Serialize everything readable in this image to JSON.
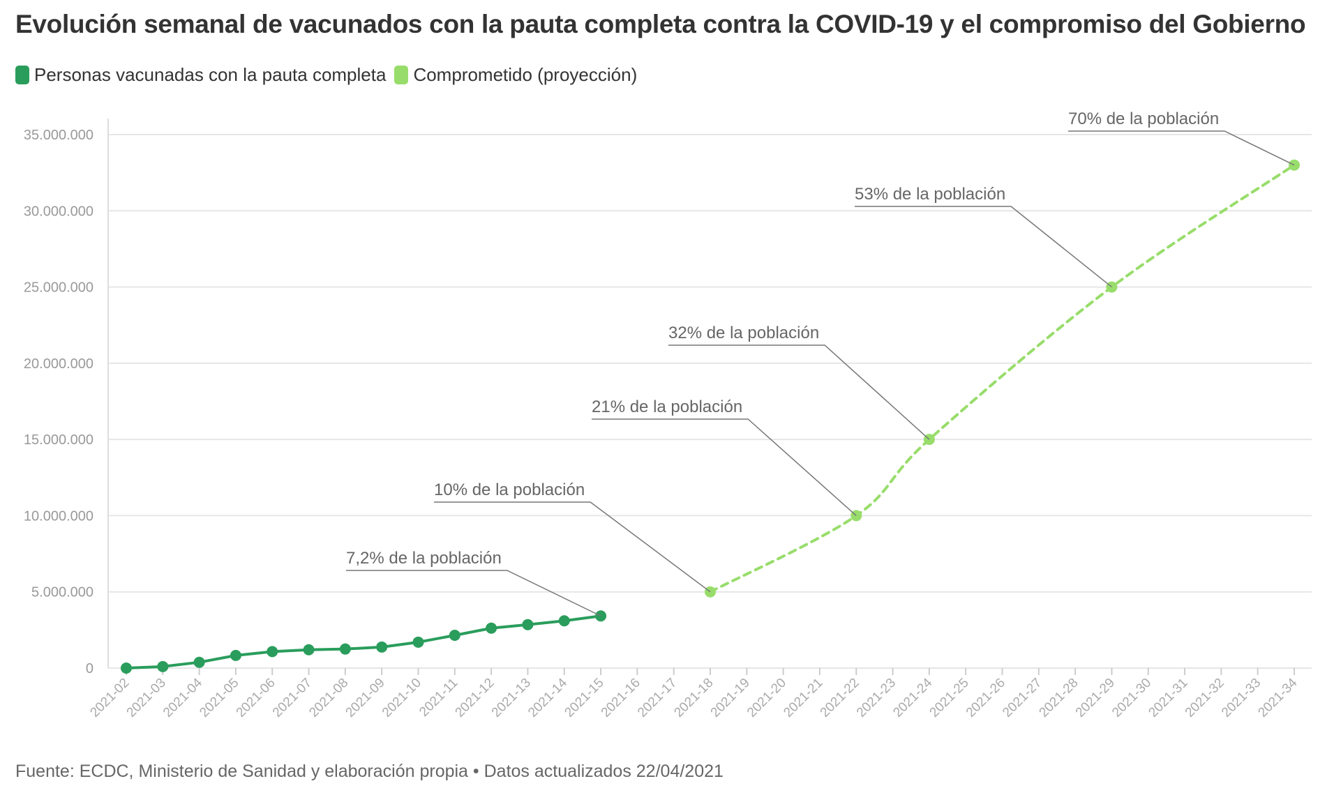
{
  "title": "Evolución semanal de vacunados con la pauta completa contra la COVID-19 y el compromiso del Gobierno",
  "footer": "Fuente: ECDC, Ministerio de Sanidad y elaboración propia • Datos actualizados 22/04/2021",
  "colors": {
    "vaccinated": "#2a9d5c",
    "projection": "#98dd6b",
    "grid": "#e6e6e6"
  },
  "chart_data": {
    "type": "line",
    "ylim": [
      0,
      35000000
    ],
    "y_ticks": [
      0,
      5000000,
      10000000,
      15000000,
      20000000,
      25000000,
      30000000,
      35000000
    ],
    "y_tick_labels": [
      "0",
      "5.000.000",
      "10.000.000",
      "15.000.000",
      "20.000.000",
      "25.000.000",
      "30.000.000",
      "35.000.000"
    ],
    "categories": [
      "2021-02",
      "2021-03",
      "2021-04",
      "2021-05",
      "2021-06",
      "2021-07",
      "2021-08",
      "2021-09",
      "2021-10",
      "2021-11",
      "2021-12",
      "2021-13",
      "2021-14",
      "2021-15",
      "2021-16",
      "2021-17",
      "2021-18",
      "2021-19",
      "2021-20",
      "2021-21",
      "2021-22",
      "2021-23",
      "2021-24",
      "2021-25",
      "2021-26",
      "2021-27",
      "2021-28",
      "2021-29",
      "2021-30",
      "2021-31",
      "2021-32",
      "2021-33",
      "2021-34"
    ],
    "series": [
      {
        "name": "Personas vacunadas con la pauta completa",
        "style": "solid",
        "points": [
          {
            "x": "2021-02",
            "y": 0
          },
          {
            "x": "2021-03",
            "y": 100000
          },
          {
            "x": "2021-04",
            "y": 380000
          },
          {
            "x": "2021-05",
            "y": 830000
          },
          {
            "x": "2021-06",
            "y": 1080000
          },
          {
            "x": "2021-07",
            "y": 1200000
          },
          {
            "x": "2021-08",
            "y": 1250000
          },
          {
            "x": "2021-09",
            "y": 1380000
          },
          {
            "x": "2021-10",
            "y": 1700000
          },
          {
            "x": "2021-11",
            "y": 2150000
          },
          {
            "x": "2021-12",
            "y": 2620000
          },
          {
            "x": "2021-13",
            "y": 2850000
          },
          {
            "x": "2021-14",
            "y": 3100000
          },
          {
            "x": "2021-15",
            "y": 3420000
          }
        ]
      },
      {
        "name": "Comprometido (proyección)",
        "style": "dashed",
        "points": [
          {
            "x": "2021-18",
            "y": 5000000
          },
          {
            "x": "2021-22",
            "y": 10000000
          },
          {
            "x": "2021-24",
            "y": 15000000
          },
          {
            "x": "2021-29",
            "y": 25000000
          },
          {
            "x": "2021-34",
            "y": 33000000
          }
        ]
      }
    ],
    "annotations": [
      {
        "text": "7,2% de la población",
        "series": 0,
        "x": "2021-15",
        "y": 3420000
      },
      {
        "text": "10% de la población",
        "series": 1,
        "x": "2021-18",
        "y": 5000000
      },
      {
        "text": "21% de la población",
        "series": 1,
        "x": "2021-22",
        "y": 10000000
      },
      {
        "text": "32% de la población",
        "series": 1,
        "x": "2021-24",
        "y": 15000000
      },
      {
        "text": "53% de la población",
        "series": 1,
        "x": "2021-29",
        "y": 25000000
      },
      {
        "text": "70% de la población",
        "series": 1,
        "x": "2021-34",
        "y": 33000000
      }
    ]
  }
}
